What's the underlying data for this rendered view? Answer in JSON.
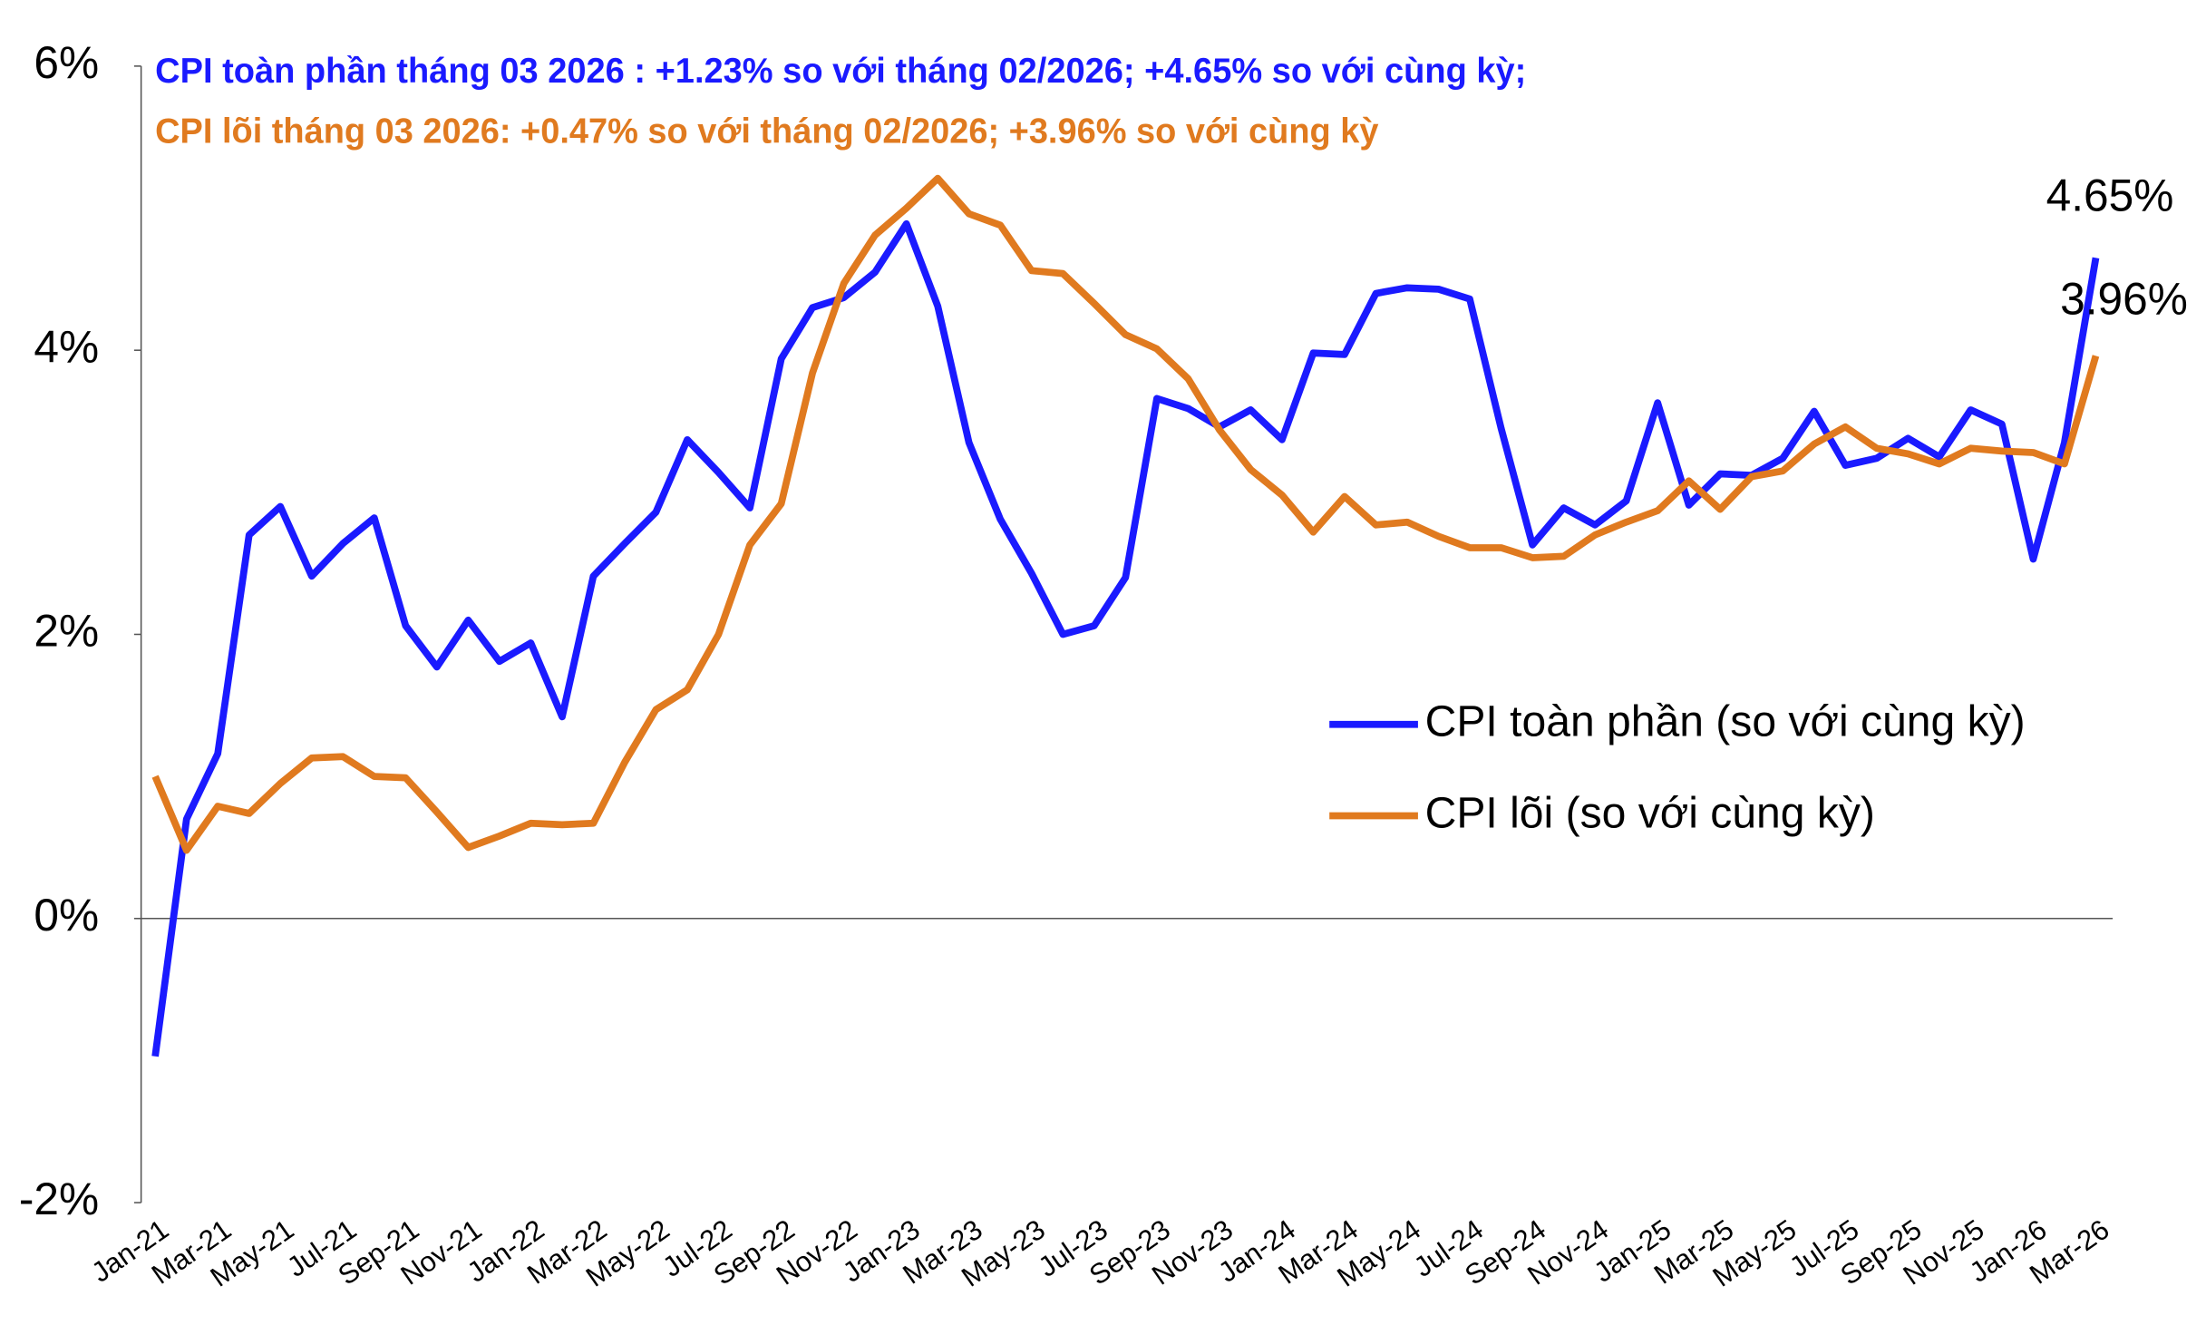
{
  "chart_data": {
    "type": "line",
    "annotations": [
      {
        "text": "CPI toàn phần tháng 03 2026 : +1.23% so với tháng 02/2026; +4.65% so với cùng kỳ;",
        "color": "#1a1aff"
      },
      {
        "text": "CPI lõi tháng 03 2026: +0.47% so với tháng 02/2026; +3.96% so với cùng kỳ",
        "color": "#e07a1f"
      }
    ],
    "categories": [
      "Jan-21",
      null,
      "Mar-21",
      null,
      "May-21",
      null,
      "Jul-21",
      null,
      "Sep-21",
      null,
      "Nov-21",
      null,
      "Jan-22",
      null,
      "Mar-22",
      null,
      "May-22",
      null,
      "Jul-22",
      null,
      "Sep-22",
      null,
      "Nov-22",
      null,
      "Jan-23",
      null,
      "Mar-23",
      null,
      "May-23",
      null,
      "Jul-23",
      null,
      "Sep-23",
      null,
      "Nov-23",
      null,
      "Jan-24",
      null,
      "Mar-24",
      null,
      "May-24",
      null,
      "Jul-24",
      null,
      "Sep-24",
      null,
      "Nov-24",
      null,
      "Jan-25",
      null,
      "Mar-25",
      null,
      "May-25",
      null,
      "Jul-25",
      null,
      "Sep-25",
      null,
      "Nov-25",
      null,
      "Jan-26",
      null,
      "Mar-26"
    ],
    "series": [
      {
        "name": "CPI toàn phần (so với cùng kỳ)",
        "color": "#1a1aff",
        "values": [
          -0.97,
          0.7,
          1.16,
          2.7,
          2.9,
          2.41,
          2.64,
          2.82,
          2.06,
          1.77,
          2.1,
          1.81,
          1.94,
          1.42,
          2.41,
          2.64,
          2.86,
          3.37,
          3.14,
          2.89,
          3.94,
          4.3,
          4.37,
          4.55,
          4.89,
          4.31,
          3.35,
          2.81,
          2.43,
          2.0,
          2.06,
          2.4,
          3.66,
          3.59,
          3.46,
          3.58,
          3.37,
          3.98,
          3.97,
          4.4,
          4.44,
          4.43,
          4.36,
          3.45,
          2.63,
          2.89,
          2.77,
          2.94,
          3.63,
          2.91,
          3.13,
          3.12,
          3.24,
          3.57,
          3.19,
          3.24,
          3.38,
          3.25,
          3.58,
          3.48,
          2.53,
          3.35,
          4.65
        ],
        "value_labels": [
          null,
          null,
          null,
          null,
          null,
          null,
          null,
          null,
          null,
          null,
          null,
          null,
          null,
          null,
          null,
          null,
          null,
          null,
          null,
          null,
          null,
          null,
          null,
          null,
          null,
          null,
          null,
          null,
          null,
          null,
          null,
          null,
          null,
          null,
          null,
          null,
          null,
          null,
          null,
          null,
          null,
          null,
          null,
          null,
          null,
          null,
          null,
          null,
          null,
          null,
          null,
          null,
          null,
          null,
          null,
          null,
          null,
          null,
          null,
          null,
          null,
          null,
          "4.65%"
        ]
      },
      {
        "name": "CPI lõi (so với cùng kỳ)",
        "color": "#e07a1f",
        "values": [
          1.0,
          0.48,
          0.79,
          0.74,
          0.95,
          1.13,
          1.14,
          1.0,
          0.99,
          0.75,
          0.5,
          0.58,
          0.67,
          0.66,
          0.67,
          1.1,
          1.47,
          1.61,
          2.0,
          2.63,
          2.92,
          3.84,
          4.47,
          4.81,
          5.0,
          5.21,
          4.96,
          4.88,
          4.56,
          4.54,
          4.33,
          4.11,
          4.01,
          3.8,
          3.44,
          3.16,
          2.98,
          2.72,
          2.97,
          2.77,
          2.79,
          2.69,
          2.61,
          2.61,
          2.54,
          2.55,
          2.7,
          2.79,
          2.87,
          3.08,
          2.88,
          3.11,
          3.15,
          3.34,
          3.46,
          3.31,
          3.27,
          3.2,
          3.31,
          3.29,
          3.28,
          3.2,
          3.96
        ],
        "value_labels": [
          null,
          null,
          null,
          null,
          null,
          null,
          null,
          null,
          null,
          null,
          null,
          null,
          null,
          null,
          null,
          null,
          null,
          null,
          null,
          null,
          null,
          null,
          null,
          null,
          null,
          null,
          null,
          null,
          null,
          null,
          null,
          null,
          null,
          null,
          null,
          null,
          null,
          null,
          null,
          null,
          null,
          null,
          null,
          null,
          null,
          null,
          null,
          null,
          null,
          null,
          null,
          null,
          null,
          null,
          null,
          null,
          null,
          null,
          null,
          null,
          null,
          null,
          "3.96%"
        ]
      }
    ],
    "ylim": [
      -2,
      6
    ],
    "yticks": [
      {
        "value": -2,
        "label": "-2%"
      },
      {
        "value": 0,
        "label": "0%"
      },
      {
        "value": 2,
        "label": "2%"
      },
      {
        "value": 4,
        "label": "4%"
      },
      {
        "value": 6,
        "label": "6%"
      }
    ],
    "legend": "lower right"
  }
}
